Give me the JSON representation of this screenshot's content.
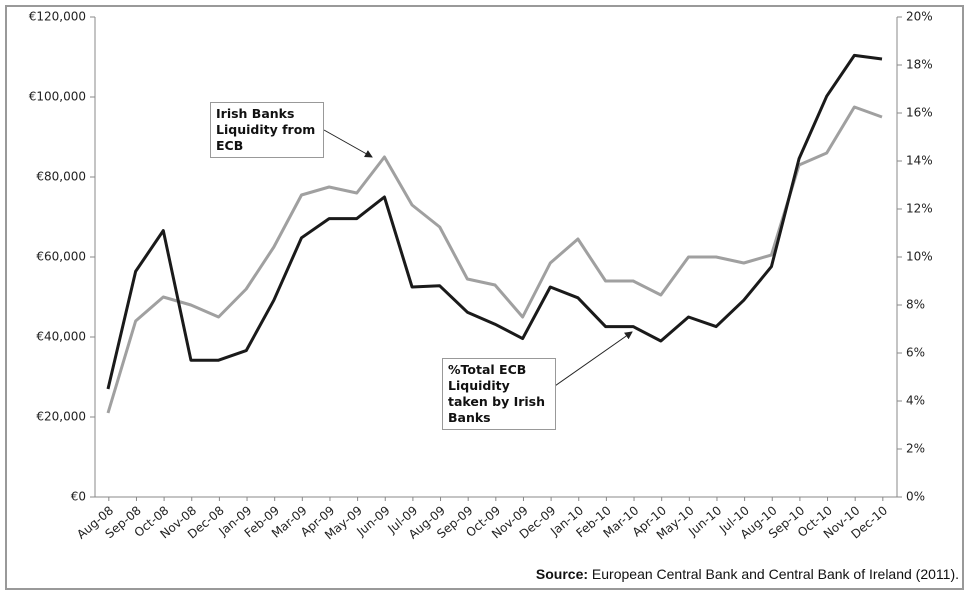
{
  "chart_data": {
    "type": "line",
    "categories": [
      "Aug-08",
      "Sep-08",
      "Oct-08",
      "Nov-08",
      "Dec-08",
      "Jan-09",
      "Feb-09",
      "Mar-09",
      "Apr-09",
      "May-09",
      "Jun-09",
      "Jul-09",
      "Aug-09",
      "Sep-09",
      "Oct-09",
      "Nov-09",
      "Dec-09",
      "Jan-10",
      "Feb-10",
      "Mar-10",
      "Apr-10",
      "May-10",
      "Jun-10",
      "Jul-10",
      "Aug-10",
      "Sep-10",
      "Oct-10",
      "Nov-10",
      "Dec-10"
    ],
    "series": [
      {
        "name": "Irish Banks Liquidity from ECB",
        "color": "#a0a0a0",
        "values": [
          21000,
          44000,
          50000,
          48000,
          45000,
          52000,
          62500,
          75500,
          77500,
          76000,
          85000,
          73000,
          67500,
          54500,
          53000,
          45000,
          58500,
          64500,
          54000,
          54000,
          50500,
          60000,
          60000,
          58500,
          60500,
          83000,
          86000,
          97500,
          95000
        ]
      },
      {
        "name": "%Total ECB Liquidity taken by Irish Banks",
        "color": "#1a1a1a",
        "axis": "y2",
        "values": [
          4.5,
          9.4,
          11.1,
          5.7,
          5.7,
          6.1,
          8.2,
          10.8,
          11.6,
          11.6,
          12.5,
          8.75,
          8.8,
          7.7,
          7.2,
          6.6,
          8.75,
          8.3,
          7.1,
          7.1,
          6.5,
          7.5,
          7.1,
          8.2,
          9.6,
          14.1,
          16.7,
          18.4,
          18.25
        ]
      }
    ],
    "ylim": [
      0,
      120000
    ],
    "yticks": [
      {
        "value": 0,
        "label": "€0"
      },
      {
        "value": 20000,
        "label": "€20,000"
      },
      {
        "value": 40000,
        "label": "€40,000"
      },
      {
        "value": 60000,
        "label": "€60,000"
      },
      {
        "value": 80000,
        "label": "€80,000"
      },
      {
        "value": 100000,
        "label": "€100,000"
      },
      {
        "value": 120000,
        "label": "€120,000"
      }
    ],
    "y2lim": [
      0,
      20
    ],
    "y2ticks": [
      {
        "value": 0,
        "label": "0%"
      },
      {
        "value": 2,
        "label": "2%"
      },
      {
        "value": 4,
        "label": "4%"
      },
      {
        "value": 6,
        "label": "6%"
      },
      {
        "value": 8,
        "label": "8%"
      },
      {
        "value": 10,
        "label": "10%"
      },
      {
        "value": 12,
        "label": "12%"
      },
      {
        "value": 14,
        "label": "14%"
      },
      {
        "value": 16,
        "label": "16%"
      },
      {
        "value": 18,
        "label": "18%"
      },
      {
        "value": 20,
        "label": "20%"
      }
    ],
    "source_label": "Source:",
    "source_text": "European Central Bank and Central Bank of Ireland (2011)."
  }
}
